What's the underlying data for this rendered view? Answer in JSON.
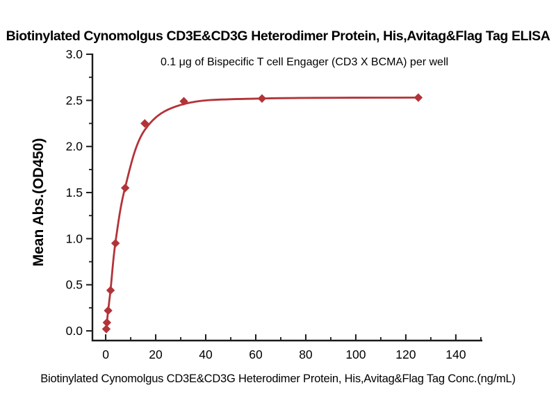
{
  "title": "Biotinylated Cynomolgus CD3E&CD3G Heterodimer Protein, His,Avitag&Flag Tag ELISA",
  "subtitle": "0.1 μg of Bispecific T cell Engager (CD3 X BCMA) per well",
  "chart_data": {
    "type": "scatter",
    "title": "Biotinylated Cynomolgus CD3E&CD3G Heterodimer Protein, His,Avitag&Flag Tag ELISA",
    "subtitle": "0.1 μg of Bispecific T cell Engager (CD3 X BCMA) per well",
    "xlabel": "Biotinylated Cynomolgus CD3E&CD3G Heterodimer Protein, His,Avitag&Flag Tag Conc.(ng/mL)",
    "ylabel": "Mean Abs.(OD450)",
    "xlim": [
      -5.3,
      150.6
    ],
    "ylim": [
      -0.105,
      3.008
    ],
    "grid": false,
    "legend": "none",
    "x_major_ticks": [
      0,
      20,
      40,
      60,
      80,
      100,
      120,
      140
    ],
    "x_major_tick_labels": [
      "0",
      "20",
      "40",
      "60",
      "80",
      "100",
      "120",
      "140"
    ],
    "x_minor_ticks": [
      10,
      30,
      50,
      70,
      90,
      110,
      130,
      150
    ],
    "y_major_ticks": [
      0.0,
      0.5,
      1.0,
      1.5,
      2.0,
      2.5,
      3.0
    ],
    "y_major_tick_labels": [
      "0.0",
      "0.5",
      "1.0",
      "1.5",
      "2.0",
      "2.5",
      "3.0"
    ],
    "y_minor_ticks": [
      0.25,
      0.75,
      1.25,
      1.75,
      2.25,
      2.75
    ],
    "series": [
      {
        "name": "ELISA binding (mean OD450)",
        "marker": "diamond",
        "color": "#b23338",
        "x": [
          0.24,
          0.49,
          0.98,
          1.95,
          3.91,
          7.81,
          15.63,
          31.25,
          62.5,
          125
        ],
        "y": [
          0.02,
          0.09,
          0.22,
          0.44,
          0.95,
          1.55,
          2.25,
          2.49,
          2.52,
          2.53
        ]
      }
    ],
    "fit_curve": {
      "name": "4PL fit curve",
      "color": "#b23338",
      "points": [
        [
          0.24,
          0.02
        ],
        [
          0.49,
          0.09
        ],
        [
          0.98,
          0.22
        ],
        [
          1.95,
          0.445
        ],
        [
          3.91,
          0.96
        ],
        [
          7.81,
          1.56
        ],
        [
          15.63,
          2.18
        ],
        [
          31.25,
          2.46
        ],
        [
          62.5,
          2.52
        ],
        [
          125,
          2.53
        ]
      ]
    }
  },
  "colors": {
    "curve": "#b23338",
    "axis": "#1a1a1a",
    "text": "#000000",
    "background": "#ffffff"
  }
}
